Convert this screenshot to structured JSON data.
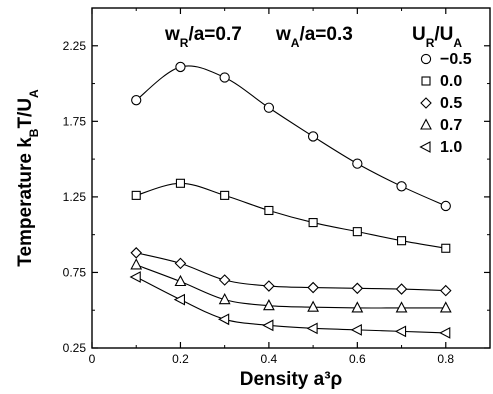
{
  "chart_data": {
    "type": "line",
    "xlabel": "Density a³ρ",
    "ylabel": "Temperature k_BT/U_A",
    "xlim": [
      0,
      0.9
    ],
    "ylim": [
      0.25,
      2.5
    ],
    "x_ticks": [
      "0",
      "0.2",
      "0.4",
      "0.6",
      "0.8"
    ],
    "y_ticks": [
      "0.25",
      "0.75",
      "1.25",
      "1.75",
      "2.25"
    ],
    "annotations": [
      "w_R/a=0.7",
      "w_A/a=0.3"
    ],
    "legend_title": "U_R/U_A",
    "legend_position": "top-right",
    "series": [
      {
        "name": "−0.5",
        "marker": "circle",
        "x": [
          0.1,
          0.2,
          0.3,
          0.4,
          0.5,
          0.6,
          0.7,
          0.8
        ],
        "y": [
          1.89,
          2.11,
          2.04,
          1.84,
          1.65,
          1.47,
          1.32,
          1.19
        ]
      },
      {
        "name": "0.0",
        "marker": "square",
        "x": [
          0.1,
          0.2,
          0.3,
          0.4,
          0.5,
          0.6,
          0.7,
          0.8
        ],
        "y": [
          1.26,
          1.34,
          1.26,
          1.16,
          1.08,
          1.02,
          0.96,
          0.91
        ]
      },
      {
        "name": "0.5",
        "marker": "diamond",
        "x": [
          0.1,
          0.2,
          0.3,
          0.4,
          0.5,
          0.6,
          0.7,
          0.8
        ],
        "y": [
          0.88,
          0.81,
          0.7,
          0.66,
          0.65,
          0.645,
          0.64,
          0.63
        ]
      },
      {
        "name": "0.7",
        "marker": "triangle-up",
        "x": [
          0.1,
          0.2,
          0.3,
          0.4,
          0.5,
          0.6,
          0.7,
          0.8
        ],
        "y": [
          0.8,
          0.69,
          0.57,
          0.53,
          0.52,
          0.515,
          0.515,
          0.515
        ]
      },
      {
        "name": "1.0",
        "marker": "triangle-left",
        "x": [
          0.1,
          0.2,
          0.3,
          0.4,
          0.5,
          0.6,
          0.7,
          0.8
        ],
        "y": [
          0.72,
          0.57,
          0.44,
          0.4,
          0.38,
          0.37,
          0.36,
          0.35
        ]
      }
    ]
  }
}
